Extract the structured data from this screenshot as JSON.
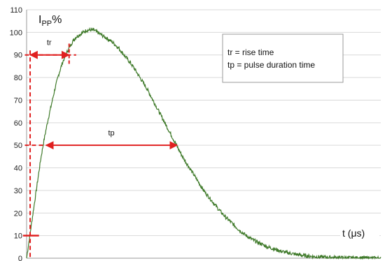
{
  "chart_data": {
    "type": "line",
    "title": "",
    "ylabel_main": "I",
    "ylabel_sub": "PP",
    "ylabel_suffix": "%",
    "xlabel": "t (μs)",
    "ylim": [
      0,
      110
    ],
    "yticks": [
      "0",
      "10",
      "20",
      "30",
      "40",
      "50",
      "60",
      "70",
      "80",
      "90",
      "100",
      "110"
    ],
    "grid": true,
    "xlim": [
      0,
      100
    ],
    "curve": {
      "color": "#3f7a2a",
      "points": [
        [
          0,
          0
        ],
        [
          1,
          11
        ],
        [
          2,
          22
        ],
        [
          3,
          33
        ],
        [
          4,
          44
        ],
        [
          5,
          53
        ],
        [
          6,
          61
        ],
        [
          7,
          68
        ],
        [
          8,
          75
        ],
        [
          9,
          81
        ],
        [
          10,
          86
        ],
        [
          11,
          90
        ],
        [
          12,
          93
        ],
        [
          13,
          96
        ],
        [
          14,
          98
        ],
        [
          15,
          99
        ],
        [
          16,
          100
        ],
        [
          17,
          101
        ],
        [
          18,
          101
        ],
        [
          19,
          101
        ],
        [
          20,
          100
        ],
        [
          22,
          98
        ],
        [
          24,
          96
        ],
        [
          26,
          93
        ],
        [
          28,
          89
        ],
        [
          30,
          85
        ],
        [
          32,
          80
        ],
        [
          34,
          75
        ],
        [
          36,
          69
        ],
        [
          38,
          63
        ],
        [
          40,
          57
        ],
        [
          42,
          51
        ],
        [
          44,
          45
        ],
        [
          46,
          40
        ],
        [
          48,
          35
        ],
        [
          50,
          30
        ],
        [
          52,
          26
        ],
        [
          54,
          22
        ],
        [
          56,
          18.5
        ],
        [
          58,
          15.5
        ],
        [
          60,
          12.5
        ],
        [
          62,
          10
        ],
        [
          64,
          8
        ],
        [
          66,
          6.5
        ],
        [
          68,
          5
        ],
        [
          70,
          4
        ],
        [
          72,
          3
        ],
        [
          74,
          2.3
        ],
        [
          76,
          1.7
        ],
        [
          78,
          1.2
        ],
        [
          80,
          0.9
        ],
        [
          82,
          0.6
        ],
        [
          85,
          0.4
        ],
        [
          88,
          0.25
        ],
        [
          92,
          0.15
        ],
        [
          96,
          0.1
        ],
        [
          100,
          0.05
        ]
      ]
    },
    "annotations": {
      "tr_label": "tr",
      "tp_label": "tp",
      "tr_start": 1,
      "tr_end": 12,
      "tr_level": 90,
      "tp_start": 5.5,
      "tp_end": 42.5,
      "tp_level": 50,
      "marker_level": 10,
      "marker_color": "#e02020"
    },
    "legend": {
      "line1": "tr = rise time",
      "line2": "tp = pulse duration time",
      "position": "top-right"
    }
  }
}
